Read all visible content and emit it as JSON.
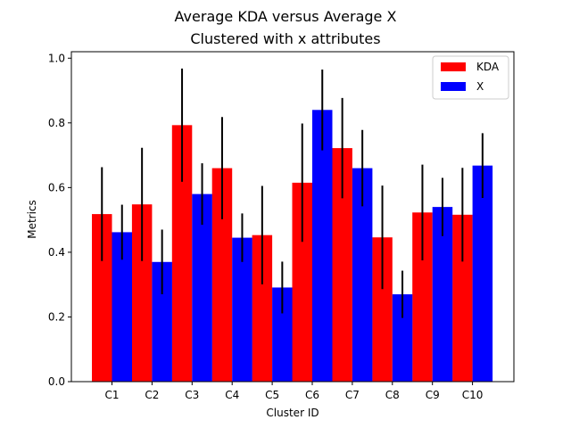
{
  "chart_data": {
    "type": "bar",
    "title": "Average KDA versus Average X",
    "subtitle": "Clustered with x attributes",
    "xlabel": "Cluster ID",
    "ylabel": "Metrics",
    "categories": [
      "C1",
      "C2",
      "C3",
      "C4",
      "C5",
      "C6",
      "C7",
      "C8",
      "C9",
      "C10"
    ],
    "ylim": [
      0,
      1.02
    ],
    "yticks": [
      "0.0",
      "0.2",
      "0.4",
      "0.6",
      "0.8",
      "1.0"
    ],
    "grid": false,
    "legend_position": "top-right",
    "series": [
      {
        "name": "KDA",
        "color": "#ff0000",
        "values": [
          0.518,
          0.548,
          0.793,
          0.66,
          0.453,
          0.615,
          0.722,
          0.446,
          0.523,
          0.516
        ],
        "err": [
          0.145,
          0.175,
          0.175,
          0.158,
          0.152,
          0.183,
          0.155,
          0.16,
          0.148,
          0.145
        ]
      },
      {
        "name": "X",
        "color": "#0000ff",
        "values": [
          0.462,
          0.37,
          0.58,
          0.445,
          0.291,
          0.84,
          0.66,
          0.27,
          0.54,
          0.668
        ],
        "err": [
          0.085,
          0.1,
          0.095,
          0.075,
          0.08,
          0.125,
          0.118,
          0.073,
          0.09,
          0.1
        ]
      }
    ]
  }
}
